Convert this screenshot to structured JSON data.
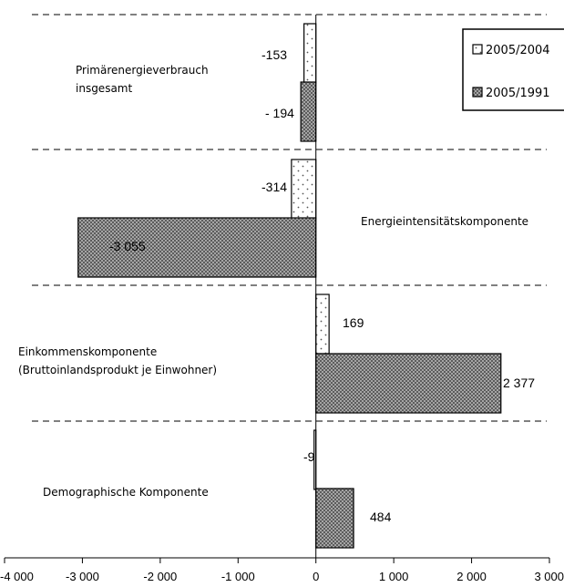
{
  "chart_data": {
    "type": "bar",
    "orientation": "horizontal",
    "categories": [
      [
        "Primärenergieverbrauch",
        "insgesamt"
      ],
      [
        "Energieintensitätskomponente"
      ],
      [
        "Einkommenskomponente",
        "(Bruttoinlandsprodukt je Einwohner)"
      ],
      [
        "Demographische Komponente"
      ]
    ],
    "series": [
      {
        "name": "2005/2004",
        "values": [
          -153,
          -314,
          169,
          -9
        ],
        "labels": [
          "-153",
          "-314",
          "169",
          "-9"
        ],
        "pattern": "dotted"
      },
      {
        "name": "2005/1991",
        "values": [
          -194,
          -3055,
          2377,
          484
        ],
        "labels": [
          "- 194",
          "-3 055",
          "2 377",
          "484"
        ],
        "pattern": "crosshatch"
      }
    ],
    "xlim": [
      -4000,
      3000
    ],
    "xticks": [
      -4000,
      -3000,
      -2000,
      -1000,
      0,
      1000,
      2000,
      3000
    ],
    "xtick_labels": [
      "-4 000",
      "-3 000",
      "-2 000",
      "-1 000",
      "0",
      "1 000",
      "2 000",
      "3 000"
    ],
    "legend_position": "top-right",
    "group_separators": "dashed"
  }
}
